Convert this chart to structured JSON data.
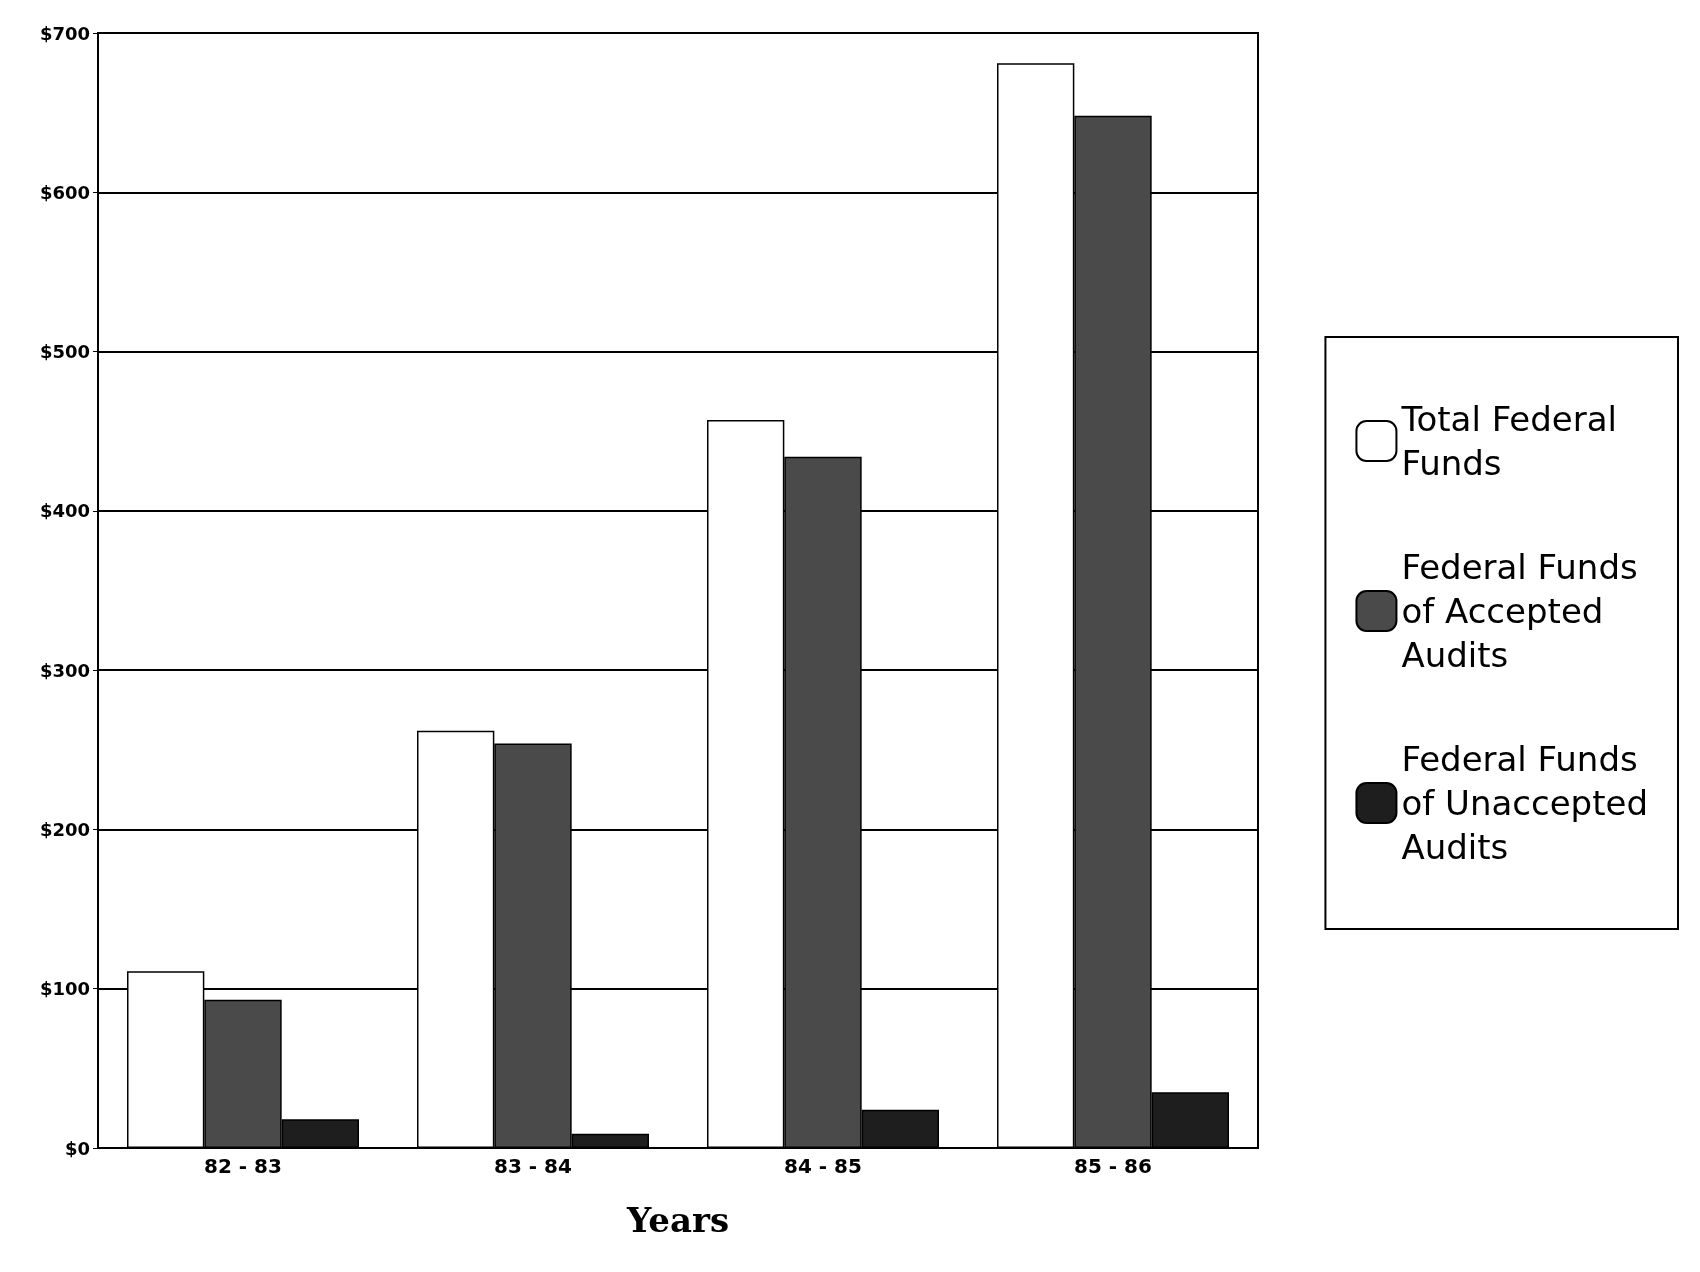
{
  "chart_data": {
    "type": "bar",
    "xlabel": "Years",
    "categories": [
      "82 - 83",
      "83 - 84",
      "84 - 85",
      "85 - 86"
    ],
    "series": [
      {
        "name": "Total Federal Funds",
        "color": "#ffffff",
        "values": [
          111,
          262,
          457,
          681
        ]
      },
      {
        "name": "Federal Funds of Accepted Audits",
        "color": "#4a4a4a",
        "values": [
          93,
          254,
          434,
          648
        ]
      },
      {
        "name": "Federal Funds of Unaccepted Audits",
        "color": "#1e1e1e",
        "values": [
          18,
          9,
          24,
          35
        ]
      }
    ],
    "ylim": [
      0,
      700
    ],
    "yticks": [
      {
        "value": 0,
        "label": "$0"
      },
      {
        "value": 100,
        "label": "$100"
      },
      {
        "value": 200,
        "label": "$200"
      },
      {
        "value": 300,
        "label": "$300"
      },
      {
        "value": 400,
        "label": "$400"
      },
      {
        "value": 500,
        "label": "$500"
      },
      {
        "value": 600,
        "label": "$600"
      },
      {
        "value": 700,
        "label": "$700"
      }
    ],
    "grid": "y",
    "legend": "right"
  }
}
